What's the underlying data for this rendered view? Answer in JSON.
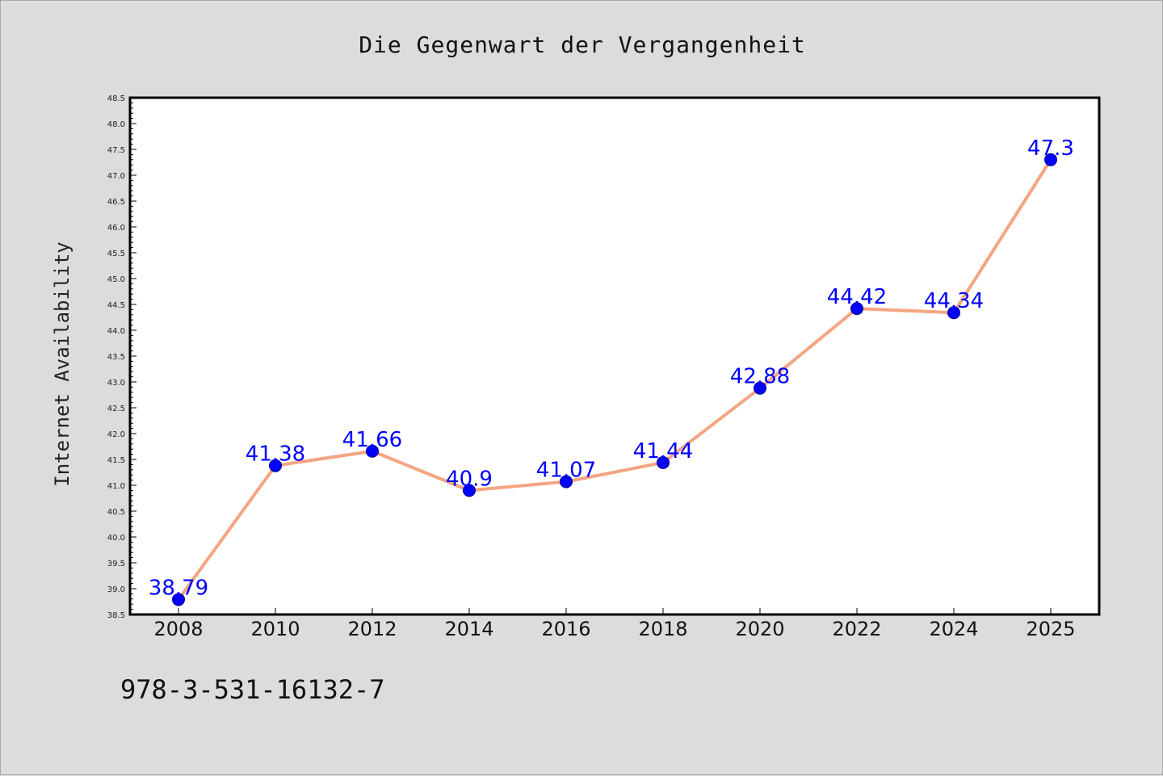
{
  "chart_data": {
    "type": "line",
    "title": "Die Gegenwart der Vergangenheit",
    "xlabel": "",
    "ylabel": "Internet Availability",
    "x": [
      "2008",
      "2010",
      "2012",
      "2014",
      "2016",
      "2018",
      "2020",
      "2022",
      "2024",
      "2025"
    ],
    "series": [
      {
        "values": [
          38.79,
          41.38,
          41.66,
          40.9,
          41.07,
          41.44,
          42.88,
          44.42,
          44.34,
          47.3
        ],
        "labels": [
          "38.79",
          "41.38",
          "41.66",
          "40.9",
          "41.07",
          "41.44",
          "42.88",
          "44.42",
          "44.34",
          "47.3"
        ],
        "line_color": "#f4a582",
        "marker_color": "#0000ff"
      }
    ],
    "ylim": [
      38.5,
      48.5
    ],
    "yticks": [
      "38.5",
      "39.0",
      "39.5",
      "40.0",
      "40.5",
      "41.0",
      "41.5",
      "42.0",
      "42.5",
      "43.0",
      "43.5",
      "44.0",
      "44.5",
      "45.0",
      "45.5",
      "46.0",
      "46.5",
      "47.0",
      "47.5",
      "48.0",
      "48.5"
    ],
    "grid": false,
    "legend": "none"
  },
  "footer": {
    "isbn": "978-3-531-16132-7"
  }
}
